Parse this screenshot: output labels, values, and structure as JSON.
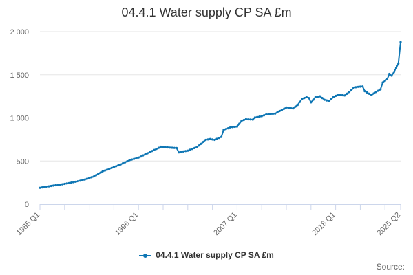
{
  "chart_data": {
    "type": "line",
    "title": "04.4.1 Water supply CP SA £m",
    "xlabel": "",
    "ylabel": "",
    "ylim": [
      0,
      2000
    ],
    "y_ticks": [
      0,
      500,
      1000,
      1500,
      2000
    ],
    "y_tick_labels": [
      "0",
      "500",
      "1 000",
      "1 500",
      "2 000"
    ],
    "x_tick_labels": [
      "1985 Q1",
      "1996 Q1",
      "2007 Q1",
      "2018 Q1",
      "2025 Q2"
    ],
    "x_tick_positions": [
      0,
      44,
      88,
      132,
      161
    ],
    "x_minor_ticks": [
      11,
      22,
      33,
      55,
      66,
      77,
      99,
      110,
      121,
      143,
      154
    ],
    "grid": "horizontal",
    "legend": "bottom-center",
    "color": "#0e76b4",
    "source_label": "Source:",
    "x_start": "1985 Q1",
    "x_end": "2025 Q2",
    "series": [
      {
        "name": "04.4.1 Water supply CP SA £m",
        "anchors": [
          [
            0,
            190
          ],
          [
            6,
            215
          ],
          [
            10,
            230
          ],
          [
            16,
            260
          ],
          [
            20,
            285
          ],
          [
            24,
            320
          ],
          [
            28,
            380
          ],
          [
            32,
            420
          ],
          [
            36,
            460
          ],
          [
            40,
            510
          ],
          [
            44,
            540
          ],
          [
            48,
            590
          ],
          [
            52,
            640
          ],
          [
            54,
            665
          ],
          [
            58,
            655
          ],
          [
            61,
            650
          ],
          [
            62,
            600
          ],
          [
            66,
            620
          ],
          [
            70,
            660
          ],
          [
            72,
            700
          ],
          [
            74,
            745
          ],
          [
            76,
            755
          ],
          [
            78,
            745
          ],
          [
            81,
            780
          ],
          [
            82,
            860
          ],
          [
            85,
            890
          ],
          [
            88,
            900
          ],
          [
            90,
            965
          ],
          [
            92,
            985
          ],
          [
            95,
            980
          ],
          [
            96,
            1005
          ],
          [
            99,
            1020
          ],
          [
            101,
            1040
          ],
          [
            105,
            1050
          ],
          [
            107,
            1080
          ],
          [
            110,
            1120
          ],
          [
            113,
            1110
          ],
          [
            115,
            1150
          ],
          [
            117,
            1220
          ],
          [
            119,
            1240
          ],
          [
            120,
            1230
          ],
          [
            121,
            1180
          ],
          [
            123,
            1240
          ],
          [
            125,
            1250
          ],
          [
            127,
            1210
          ],
          [
            129,
            1195
          ],
          [
            131,
            1240
          ],
          [
            133,
            1270
          ],
          [
            136,
            1260
          ],
          [
            139,
            1320
          ],
          [
            140,
            1350
          ],
          [
            142,
            1360
          ],
          [
            144,
            1365
          ],
          [
            145,
            1310
          ],
          [
            148,
            1265
          ],
          [
            150,
            1300
          ],
          [
            152,
            1330
          ],
          [
            153,
            1410
          ],
          [
            155,
            1450
          ],
          [
            156,
            1510
          ],
          [
            157,
            1490
          ],
          [
            158,
            1530
          ],
          [
            160,
            1630
          ],
          [
            161,
            1880
          ]
        ]
      }
    ]
  }
}
